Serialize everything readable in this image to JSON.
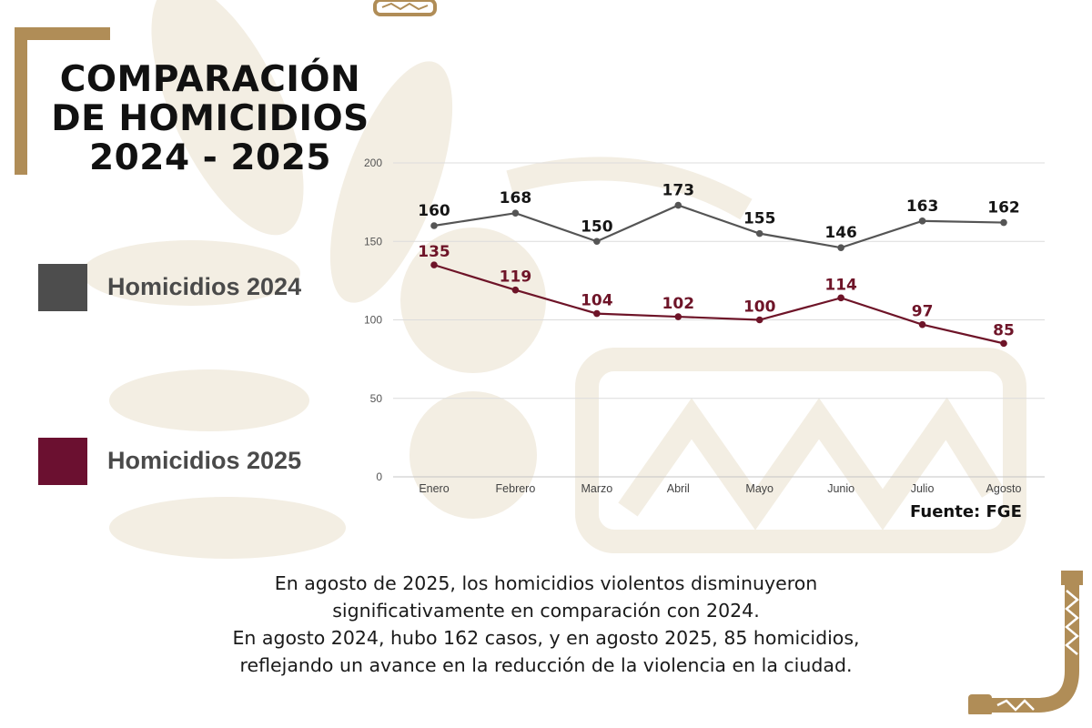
{
  "colors": {
    "accent_gold": "#b08d57",
    "series_2024": "#555555",
    "series_2025": "#6e1428",
    "legend_2024": "#4d4d4d",
    "legend_2025": "#6b1030",
    "grid": "#dcdcdc",
    "watermark": "#f1ebdf"
  },
  "title_lines": [
    "COMPARACIÓN",
    "DE HOMICIDIOS",
    "2024 - 2025"
  ],
  "legend": [
    {
      "label": "Homicidios 2024"
    },
    {
      "label": "Homicidios 2025"
    }
  ],
  "source": "Fuente: FGE",
  "caption_lines": [
    "En agosto de 2025, los homicidios violentos disminuyeron",
    "significativamente en comparación con 2024.",
    "En agosto 2024, hubo 162 casos, y en agosto 2025, 85 homicidios,",
    "reflejando un avance en la reducción de la violencia en la ciudad."
  ],
  "chart_data": {
    "type": "line",
    "title": "COMPARACIÓN DE HOMICIDIOS 2024 - 2025",
    "xlabel": "",
    "ylabel": "",
    "categories": [
      "Enero",
      "Febrero",
      "Marzo",
      "Abril",
      "Mayo",
      "Junio",
      "Julio",
      "Agosto"
    ],
    "ylim": [
      0,
      200
    ],
    "yticks": [
      0,
      50,
      100,
      150,
      200
    ],
    "grid": true,
    "legend_position": "left",
    "series": [
      {
        "name": "Homicidios 2024",
        "values": [
          160,
          168,
          150,
          173,
          155,
          146,
          163,
          162
        ]
      },
      {
        "name": "Homicidios 2025",
        "values": [
          135,
          119,
          104,
          102,
          100,
          114,
          97,
          85
        ]
      }
    ]
  }
}
